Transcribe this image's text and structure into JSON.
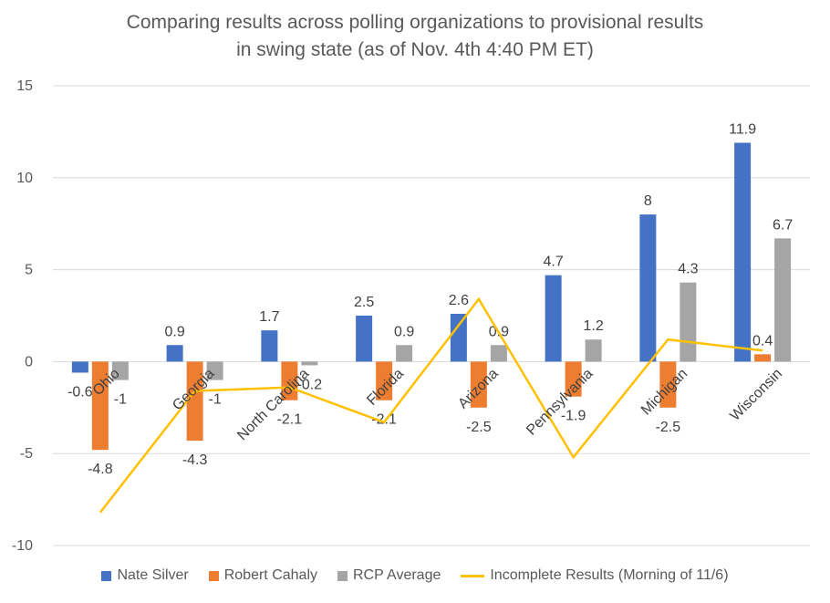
{
  "chart_data": {
    "type": "bar",
    "title": "Comparing results across polling organizations to provisional results",
    "subtitle": "in swing state (as of Nov. 4th 4:40 PM ET)",
    "categories": [
      "Ohio",
      "Georgia",
      "North Carolina",
      "Florida",
      "Arizona",
      "Pennsylvania",
      "Michigan",
      "Wisconsin"
    ],
    "series": [
      {
        "name": "Nate Silver",
        "kind": "bar",
        "color": "#4472C4",
        "values": [
          -0.6,
          0.9,
          1.7,
          2.5,
          2.6,
          4.7,
          8,
          11.9
        ],
        "labels": [
          "-0.6",
          "0.9",
          "1.7",
          "2.5",
          "2.6",
          "4.7",
          "8",
          "11.9"
        ]
      },
      {
        "name": "Robert Cahaly",
        "kind": "bar",
        "color": "#ED7D31",
        "values": [
          -4.8,
          -4.3,
          -2.1,
          -2.1,
          -2.5,
          -1.9,
          -2.5,
          0.4
        ],
        "labels": [
          "-4.8",
          "-4.3",
          "-2.1",
          "-2.1",
          "-2.5",
          "-1.9",
          "-2.5",
          "0.4"
        ]
      },
      {
        "name": "RCP Average",
        "kind": "bar",
        "color": "#A5A5A5",
        "values": [
          -1,
          -1,
          -0.2,
          0.9,
          0.9,
          1.2,
          4.3,
          6.7
        ],
        "labels": [
          "-1",
          "-1",
          "-0.2",
          "0.9",
          "0.9",
          "1.2",
          "4.3",
          "6.7"
        ]
      },
      {
        "name": "Incomplete Results (Morning of 11/6)",
        "kind": "line",
        "color": "#FFC000",
        "values": [
          -8.2,
          -1.6,
          -1.4,
          -3.3,
          3.4,
          -5.2,
          1.2,
          0.6
        ]
      }
    ],
    "ylim": [
      -10,
      15
    ],
    "yticks": [
      "-10",
      "-5",
      "0",
      "5",
      "10",
      "15"
    ],
    "xlabel": "",
    "ylabel": "",
    "gridlines": true,
    "legend_position": "bottom"
  }
}
